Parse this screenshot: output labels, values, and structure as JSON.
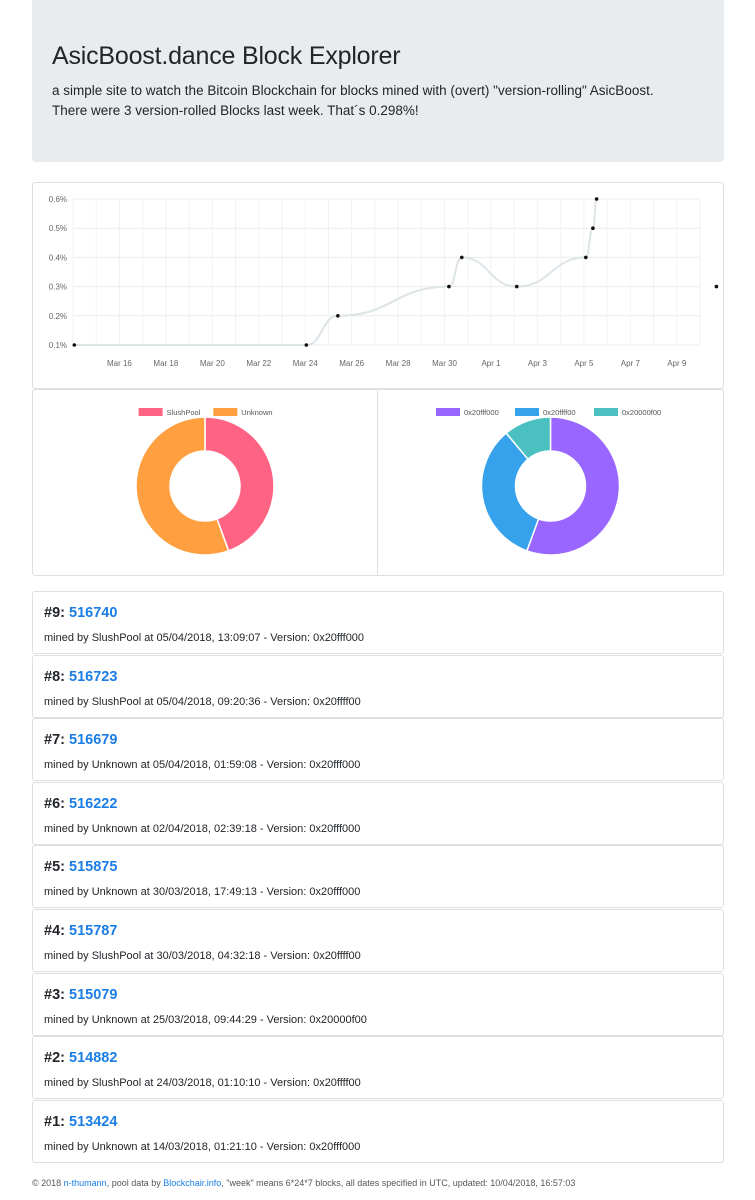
{
  "header": {
    "title": "AsicBoost.dance Block Explorer",
    "lead1": "a simple site to watch the Bitcoin Blockchain for blocks mined with (overt) \"version-rolling\" AsicBoost.",
    "lead2": "There were 3 version-rolled Blocks last week. That´s 0.298%!"
  },
  "chart_data": [
    {
      "type": "line",
      "title": "",
      "xlabel": "",
      "ylabel": "",
      "x_start": "Mar 14",
      "x_end": "Apr 10",
      "x_ticks": [
        "Mar 16",
        "Mar 18",
        "Mar 20",
        "Mar 22",
        "Mar 24",
        "Mar 26",
        "Mar 28",
        "Mar 30",
        "Apr 1",
        "Apr 3",
        "Apr 5",
        "Apr 7",
        "Apr 9"
      ],
      "y_ticks": [
        "0.1%",
        "0.2%",
        "0.3%",
        "0.4%",
        "0.5%",
        "0.6%"
      ],
      "ylim": [
        0.1,
        0.6
      ],
      "grid": true,
      "series": [
        {
          "points": [
            {
              "x": "Mar 14 01:21",
              "y": 0.1
            },
            {
              "x": "Mar 24 01:10",
              "y": 0.1
            },
            {
              "x": "Mar 25 09:44",
              "y": 0.2
            },
            {
              "x": "Mar 30 04:32",
              "y": 0.3
            },
            {
              "x": "Mar 30 17:49",
              "y": 0.4
            },
            {
              "x": "Apr 2 02:39",
              "y": 0.3
            },
            {
              "x": "Apr 5 01:59",
              "y": 0.4
            },
            {
              "x": "Apr 5 09:20",
              "y": 0.5
            },
            {
              "x": "Apr 5 13:09",
              "y": 0.6
            },
            {
              "x": "Apr 10 16:57",
              "y": 0.3
            }
          ]
        }
      ]
    },
    {
      "type": "pie",
      "legend": "top",
      "slices": [
        {
          "label": "SlushPool",
          "value": 4,
          "color": "#ff6384"
        },
        {
          "label": "Unknown",
          "value": 5,
          "color": "#ff9f40"
        }
      ]
    },
    {
      "type": "pie",
      "legend": "top",
      "slices": [
        {
          "label": "0x20fff000",
          "value": 5,
          "color": "#9966ff"
        },
        {
          "label": "0x20ffff00",
          "value": 3,
          "color": "#36a2eb"
        },
        {
          "label": "0x20000f00",
          "value": 1,
          "color": "#4bc0c0"
        }
      ]
    }
  ],
  "blocks": [
    {
      "num": "#9:",
      "height": "516740",
      "info": "mined by SlushPool at 05/04/2018, 13:09:07 - Version: 0x20fff000"
    },
    {
      "num": "#8:",
      "height": "516723",
      "info": "mined by SlushPool at 05/04/2018, 09:20:36 - Version: 0x20ffff00"
    },
    {
      "num": "#7:",
      "height": "516679",
      "info": "mined by Unknown at 05/04/2018, 01:59:08 - Version: 0x20fff000"
    },
    {
      "num": "#6:",
      "height": "516222",
      "info": "mined by Unknown at 02/04/2018, 02:39:18 - Version: 0x20fff000"
    },
    {
      "num": "#5:",
      "height": "515875",
      "info": "mined by Unknown at 30/03/2018, 17:49:13 - Version: 0x20fff000"
    },
    {
      "num": "#4:",
      "height": "515787",
      "info": "mined by SlushPool at 30/03/2018, 04:32:18 - Version: 0x20ffff00"
    },
    {
      "num": "#3:",
      "height": "515079",
      "info": "mined by Unknown at 25/03/2018, 09:44:29 - Version: 0x20000f00"
    },
    {
      "num": "#2:",
      "height": "514882",
      "info": "mined by SlushPool at 24/03/2018, 01:10:10 - Version: 0x20ffff00"
    },
    {
      "num": "#1:",
      "height": "513424",
      "info": "mined by Unknown at 14/03/2018, 01:21:10 - Version: 0x20fff000"
    }
  ],
  "footer": {
    "copyright": "© 2018 ",
    "author": "n-thumann",
    "pool_text": ", pool data by ",
    "pool_link": "Blockchair.info",
    "rest": ", \"week\" means 6*24*7 blocks, all dates specified in UTC, updated: 10/04/2018, 16:57:03"
  }
}
